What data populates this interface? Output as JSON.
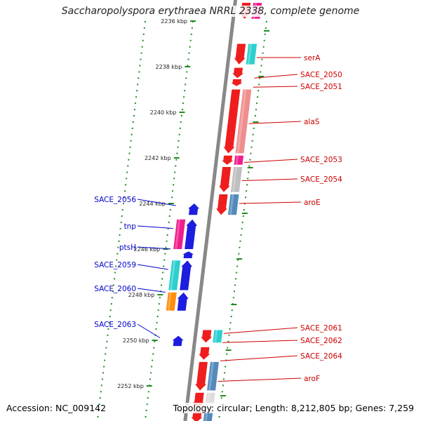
{
  "title": "Saccharopolyspora erythraea NRRL 2338, complete genome",
  "footer": {
    "accession": "Accession: NC_009142",
    "topology": "Topology: circular; Length: 8,212,805 bp; Genes: 7,259"
  },
  "ticks": [
    {
      "label": "2236 kbp",
      "pos": 2236
    },
    {
      "label": "2238 kbp",
      "pos": 2238
    },
    {
      "label": "2240 kbp",
      "pos": 2240
    },
    {
      "label": "2242 kbp",
      "pos": 2242
    },
    {
      "label": "2244 kbp",
      "pos": 2244
    },
    {
      "label": "2246 kbp",
      "pos": 2246
    },
    {
      "label": "2248 kbp",
      "pos": 2248
    },
    {
      "label": "2250 kbp",
      "pos": 2250
    },
    {
      "label": "2252 kbp",
      "pos": 2252
    }
  ],
  "colors": {
    "red": "#ee1111",
    "pink": "#ee1188",
    "lightred": "#ee8888",
    "cyan": "#22cccc",
    "blue": "#1111dd",
    "orange": "#ff8800",
    "gray": "#bbbbbb",
    "steel": "#4a84b8",
    "lightgray": "#dddddd",
    "labelRed": "#cc0000",
    "labelBlue": "#0000cc",
    "tickGreen": "#228b22"
  },
  "right_labels": [
    {
      "name": "serA",
      "pos": 2237.6
    },
    {
      "name": "SACE_2050",
      "pos": 2238.5
    },
    {
      "name": "SACE_2051",
      "pos": 2238.9
    },
    {
      "name": "alaS",
      "pos": 2240.5
    },
    {
      "name": "SACE_2053",
      "pos": 2242.2
    },
    {
      "name": "SACE_2054",
      "pos": 2243.0
    },
    {
      "name": "aroE",
      "pos": 2244.0
    },
    {
      "name": "SACE_2061",
      "pos": 2249.7
    },
    {
      "name": "SACE_2062",
      "pos": 2250.1
    },
    {
      "name": "SACE_2064",
      "pos": 2250.9
    },
    {
      "name": "aroF",
      "pos": 2251.8
    }
  ],
  "left_labels": [
    {
      "name": "SACE_2056",
      "pos": 2244.0
    },
    {
      "name": "tnp",
      "pos": 2245.0
    },
    {
      "name": "ptsH",
      "pos": 2245.9
    },
    {
      "name": "SACE_2059",
      "pos": 2246.8
    },
    {
      "name": "SACE_2060",
      "pos": 2247.8
    },
    {
      "name": "SACE_2063",
      "pos": 2249.8
    }
  ],
  "genes": [
    {
      "track": "fwd1",
      "start": 2235.2,
      "end": 2235.9,
      "color": "red",
      "dir": "down"
    },
    {
      "track": "fwd2",
      "start": 2235.2,
      "end": 2235.9,
      "color": "pink",
      "dir": "none"
    },
    {
      "track": "fwd1",
      "start": 2237.0,
      "end": 2237.9,
      "color": "red",
      "dir": "down"
    },
    {
      "track": "fwd2",
      "start": 2237.0,
      "end": 2237.9,
      "color": "cyan",
      "dir": "none"
    },
    {
      "track": "fwd1",
      "start": 2238.05,
      "end": 2238.5,
      "color": "red",
      "dir": "down"
    },
    {
      "track": "fwd1",
      "start": 2238.55,
      "end": 2238.85,
      "color": "red",
      "dir": "down"
    },
    {
      "track": "fwd1",
      "start": 2239.0,
      "end": 2241.8,
      "color": "red",
      "dir": "down"
    },
    {
      "track": "fwd2",
      "start": 2239.0,
      "end": 2241.8,
      "color": "lightred",
      "dir": "none"
    },
    {
      "track": "fwd1",
      "start": 2241.9,
      "end": 2242.3,
      "color": "red",
      "dir": "down"
    },
    {
      "track": "fwd2",
      "start": 2241.9,
      "end": 2242.3,
      "color": "pink",
      "dir": "none"
    },
    {
      "track": "fwd1",
      "start": 2242.4,
      "end": 2243.5,
      "color": "red",
      "dir": "down"
    },
    {
      "track": "fwd2",
      "start": 2242.4,
      "end": 2243.5,
      "color": "gray",
      "dir": "none"
    },
    {
      "track": "fwd1",
      "start": 2243.6,
      "end": 2244.5,
      "color": "red",
      "dir": "down"
    },
    {
      "track": "fwd2",
      "start": 2243.6,
      "end": 2244.5,
      "color": "steel",
      "dir": "none"
    },
    {
      "track": "rev1",
      "start": 2244.0,
      "end": 2244.5,
      "color": "blue",
      "dir": "up"
    },
    {
      "track": "rev1",
      "start": 2244.7,
      "end": 2246.0,
      "color": "blue",
      "dir": "up"
    },
    {
      "track": "rev2",
      "start": 2244.7,
      "end": 2246.0,
      "color": "pink",
      "dir": "none"
    },
    {
      "track": "rev1",
      "start": 2246.1,
      "end": 2246.4,
      "color": "blue",
      "dir": "up"
    },
    {
      "track": "rev1",
      "start": 2246.5,
      "end": 2247.8,
      "color": "blue",
      "dir": "up"
    },
    {
      "track": "rev2",
      "start": 2246.5,
      "end": 2247.8,
      "color": "cyan",
      "dir": "none"
    },
    {
      "track": "rev1",
      "start": 2247.9,
      "end": 2248.7,
      "color": "blue",
      "dir": "up"
    },
    {
      "track": "rev2",
      "start": 2247.9,
      "end": 2248.7,
      "color": "orange",
      "dir": "none"
    },
    {
      "track": "rev1",
      "start": 2249.8,
      "end": 2250.25,
      "color": "blue",
      "dir": "up"
    },
    {
      "track": "fwd1",
      "start": 2249.55,
      "end": 2250.1,
      "color": "red",
      "dir": "down"
    },
    {
      "track": "fwd2",
      "start": 2249.55,
      "end": 2250.1,
      "color": "cyan",
      "dir": "none"
    },
    {
      "track": "fwd1",
      "start": 2250.3,
      "end": 2250.85,
      "color": "red",
      "dir": "down"
    },
    {
      "track": "fwd1",
      "start": 2250.95,
      "end": 2252.2,
      "color": "red",
      "dir": "down"
    },
    {
      "track": "fwd2",
      "start": 2250.95,
      "end": 2252.2,
      "color": "steel",
      "dir": "none"
    },
    {
      "track": "fwd1",
      "start": 2252.3,
      "end": 2253.0,
      "color": "red",
      "dir": "down"
    },
    {
      "track": "fwd2",
      "start": 2252.3,
      "end": 2253.0,
      "color": "lightgray",
      "dir": "none"
    },
    {
      "track": "fwd1",
      "start": 2253.1,
      "end": 2253.6,
      "color": "red",
      "dir": "down"
    },
    {
      "track": "fwd2",
      "start": 2253.1,
      "end": 2253.6,
      "color": "steel",
      "dir": "none"
    }
  ]
}
